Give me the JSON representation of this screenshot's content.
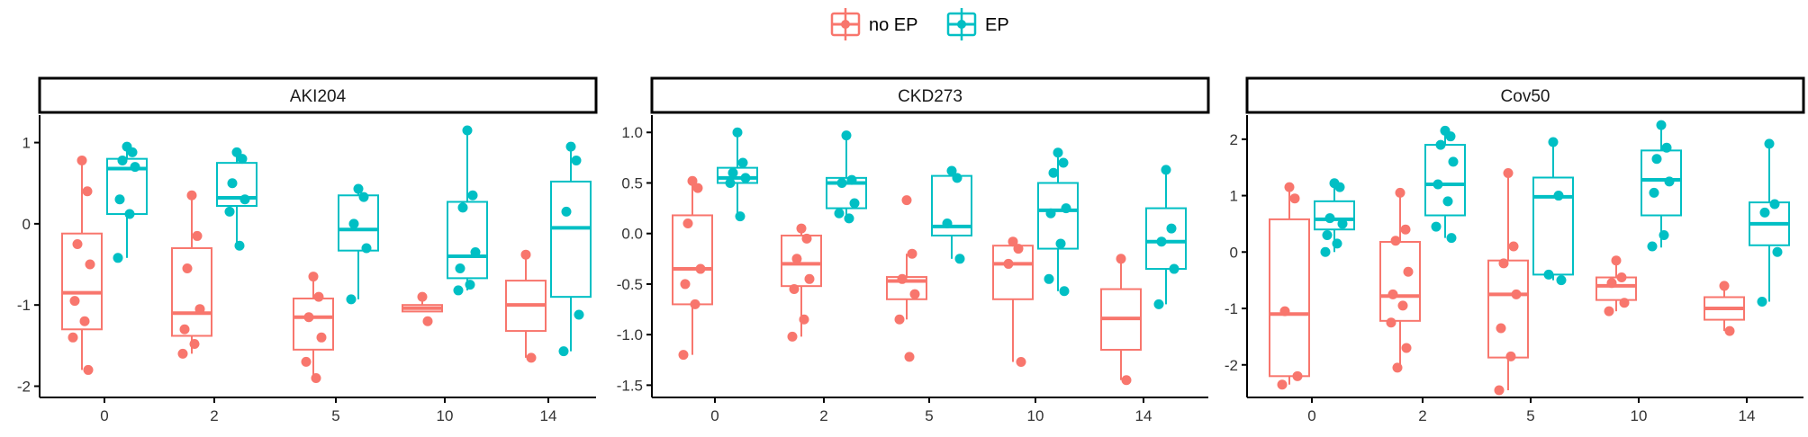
{
  "colors": {
    "no_ep": "#F8766D",
    "ep": "#00BFC4",
    "axis": "#000000",
    "strip_bg": "#ffffff"
  },
  "legend": {
    "position": "top-center",
    "entries": [
      {
        "key": "no_ep",
        "label": "no EP"
      },
      {
        "key": "ep",
        "label": "EP"
      }
    ]
  },
  "chart_data": [
    {
      "type": "boxplot",
      "title": "AKI204",
      "categories": [
        "0",
        "2",
        "5",
        "10",
        "14"
      ],
      "ylim": [
        -2.05,
        1.25
      ],
      "yticks": [
        -2,
        -1,
        0,
        1
      ],
      "tick_labels": [
        "-2",
        "-1",
        "0",
        "1"
      ],
      "groups": {
        "no_ep": [
          {
            "q1": -1.3,
            "median": -0.85,
            "q3": -0.12,
            "whisker_low": -1.8,
            "whisker_high": 0.78,
            "points": [
              0.78,
              0.4,
              -0.25,
              -0.5,
              -0.95,
              -1.2,
              -1.4,
              -1.8
            ]
          },
          {
            "q1": -1.38,
            "median": -1.1,
            "q3": -0.3,
            "whisker_low": -1.6,
            "whisker_high": 0.35,
            "points": [
              0.35,
              -0.15,
              -0.55,
              -1.05,
              -1.3,
              -1.48,
              -1.6
            ]
          },
          {
            "q1": -1.55,
            "median": -1.15,
            "q3": -0.92,
            "whisker_low": -1.9,
            "whisker_high": -0.65,
            "points": [
              -0.65,
              -0.9,
              -1.15,
              -1.4,
              -1.7,
              -1.9
            ]
          },
          {
            "q1": -1.08,
            "median": -1.04,
            "q3": -1.0,
            "whisker_low": -1.08,
            "whisker_high": -0.9,
            "points": [
              -0.9,
              -1.2
            ]
          },
          {
            "q1": -1.32,
            "median": -1.0,
            "q3": -0.7,
            "whisker_low": -1.65,
            "whisker_high": -0.38,
            "points": [
              -0.38,
              -1.65
            ]
          }
        ],
        "ep": [
          {
            "q1": 0.12,
            "median": 0.68,
            "q3": 0.8,
            "whisker_low": -0.42,
            "whisker_high": 0.95,
            "points": [
              0.95,
              0.88,
              0.78,
              0.7,
              0.3,
              0.12,
              -0.42
            ]
          },
          {
            "q1": 0.22,
            "median": 0.32,
            "q3": 0.75,
            "whisker_low": -0.27,
            "whisker_high": 0.88,
            "points": [
              0.88,
              0.8,
              0.5,
              0.3,
              0.15,
              -0.27
            ]
          },
          {
            "q1": -0.33,
            "median": -0.07,
            "q3": 0.35,
            "whisker_low": -0.93,
            "whisker_high": 0.43,
            "points": [
              0.43,
              0.33,
              0.0,
              -0.3,
              -0.93
            ]
          },
          {
            "q1": -0.67,
            "median": -0.4,
            "q3": 0.27,
            "whisker_low": -0.82,
            "whisker_high": 1.15,
            "points": [
              1.15,
              0.35,
              0.2,
              -0.35,
              -0.55,
              -0.75,
              -0.82
            ]
          },
          {
            "q1": -0.9,
            "median": -0.05,
            "q3": 0.52,
            "whisker_low": -1.57,
            "whisker_high": 0.95,
            "points": [
              0.95,
              0.78,
              0.15,
              -1.12,
              -1.57
            ]
          }
        ]
      }
    },
    {
      "type": "boxplot",
      "title": "CKD273",
      "categories": [
        "0",
        "2",
        "5",
        "10",
        "14"
      ],
      "ylim": [
        -1.55,
        1.1
      ],
      "yticks": [
        -1.5,
        -1.0,
        -0.5,
        0.0,
        0.5,
        1.0
      ],
      "tick_labels": [
        "-1.5",
        "-1.0",
        "-0.5",
        "0.0",
        "0.5",
        "1.0"
      ],
      "groups": {
        "no_ep": [
          {
            "q1": -0.7,
            "median": -0.35,
            "q3": 0.18,
            "whisker_low": -1.2,
            "whisker_high": 0.52,
            "points": [
              0.52,
              0.45,
              0.1,
              -0.35,
              -0.5,
              -0.7,
              -1.2
            ]
          },
          {
            "q1": -0.52,
            "median": -0.3,
            "q3": -0.02,
            "whisker_low": -1.02,
            "whisker_high": 0.05,
            "points": [
              0.05,
              -0.05,
              -0.25,
              -0.45,
              -0.55,
              -0.85,
              -1.02
            ]
          },
          {
            "q1": -0.65,
            "median": -0.47,
            "q3": -0.43,
            "whisker_low": -0.85,
            "whisker_high": -0.2,
            "points": [
              0.33,
              -0.2,
              -0.45,
              -0.6,
              -0.85,
              -1.22
            ]
          },
          {
            "q1": -0.65,
            "median": -0.3,
            "q3": -0.12,
            "whisker_low": -1.27,
            "whisker_high": -0.08,
            "points": [
              -0.08,
              -0.15,
              -0.3,
              -1.27
            ]
          },
          {
            "q1": -1.15,
            "median": -0.84,
            "q3": -0.55,
            "whisker_low": -1.45,
            "whisker_high": -0.25,
            "points": [
              -0.25,
              -1.45
            ]
          }
        ],
        "ep": [
          {
            "q1": 0.5,
            "median": 0.55,
            "q3": 0.65,
            "whisker_low": 0.17,
            "whisker_high": 1.0,
            "points": [
              1.0,
              0.7,
              0.6,
              0.55,
              0.5,
              0.17
            ]
          },
          {
            "q1": 0.25,
            "median": 0.5,
            "q3": 0.55,
            "whisker_low": 0.15,
            "whisker_high": 0.97,
            "points": [
              0.97,
              0.53,
              0.5,
              0.3,
              0.2,
              0.15
            ]
          },
          {
            "q1": -0.02,
            "median": 0.07,
            "q3": 0.57,
            "whisker_low": -0.25,
            "whisker_high": 0.62,
            "points": [
              0.62,
              0.55,
              0.1,
              -0.25
            ]
          },
          {
            "q1": -0.15,
            "median": 0.23,
            "q3": 0.5,
            "whisker_low": -0.57,
            "whisker_high": 0.8,
            "points": [
              0.8,
              0.7,
              0.6,
              0.25,
              0.2,
              -0.1,
              -0.45,
              -0.57
            ]
          },
          {
            "q1": -0.35,
            "median": -0.08,
            "q3": 0.25,
            "whisker_low": -0.7,
            "whisker_high": 0.63,
            "points": [
              0.63,
              0.05,
              -0.08,
              -0.35,
              -0.7
            ]
          }
        ]
      }
    },
    {
      "type": "boxplot",
      "title": "Cov50",
      "categories": [
        "0",
        "2",
        "5",
        "10",
        "14"
      ],
      "ylim": [
        -2.45,
        2.3
      ],
      "yticks": [
        -2,
        -1,
        0,
        1,
        2
      ],
      "tick_labels": [
        "-2",
        "-1",
        "0",
        "1",
        "2"
      ],
      "groups": {
        "no_ep": [
          {
            "q1": -2.2,
            "median": -1.1,
            "q3": 0.58,
            "whisker_low": -2.35,
            "whisker_high": 1.15,
            "points": [
              1.15,
              0.95,
              -1.05,
              -2.2,
              -2.35
            ]
          },
          {
            "q1": -1.22,
            "median": -0.78,
            "q3": 0.18,
            "whisker_low": -2.05,
            "whisker_high": 1.05,
            "points": [
              1.05,
              0.4,
              0.2,
              -0.35,
              -0.75,
              -0.95,
              -1.25,
              -1.7,
              -2.05
            ]
          },
          {
            "q1": -1.87,
            "median": -0.75,
            "q3": -0.15,
            "whisker_low": -2.45,
            "whisker_high": 1.4,
            "points": [
              1.4,
              0.1,
              -0.2,
              -0.75,
              -1.35,
              -1.85,
              -2.45
            ]
          },
          {
            "q1": -0.85,
            "median": -0.6,
            "q3": -0.45,
            "whisker_low": -1.05,
            "whisker_high": -0.15,
            "points": [
              -0.15,
              -0.45,
              -0.55,
              -0.9,
              -1.05
            ]
          },
          {
            "q1": -1.2,
            "median": -1.0,
            "q3": -0.8,
            "whisker_low": -1.4,
            "whisker_high": -0.6,
            "points": [
              -0.6,
              -1.4
            ]
          }
        ],
        "ep": [
          {
            "q1": 0.4,
            "median": 0.58,
            "q3": 0.9,
            "whisker_low": 0.0,
            "whisker_high": 1.22,
            "points": [
              1.22,
              1.15,
              0.6,
              0.5,
              0.3,
              0.15,
              0.0
            ]
          },
          {
            "q1": 0.65,
            "median": 1.2,
            "q3": 1.9,
            "whisker_low": 0.25,
            "whisker_high": 2.15,
            "points": [
              2.15,
              2.05,
              1.9,
              1.6,
              1.2,
              0.9,
              0.45,
              0.25
            ]
          },
          {
            "q1": -0.4,
            "median": 0.98,
            "q3": 1.32,
            "whisker_low": -0.5,
            "whisker_high": 1.95,
            "points": [
              1.95,
              1.0,
              -0.4,
              -0.5
            ]
          },
          {
            "q1": 0.65,
            "median": 1.28,
            "q3": 1.8,
            "whisker_low": 0.08,
            "whisker_high": 2.25,
            "points": [
              2.25,
              1.85,
              1.65,
              1.25,
              1.05,
              0.3,
              0.1
            ]
          },
          {
            "q1": 0.12,
            "median": 0.5,
            "q3": 0.88,
            "whisker_low": -0.88,
            "whisker_high": 1.92,
            "points": [
              1.92,
              0.85,
              0.7,
              0.0,
              -0.88
            ]
          }
        ]
      }
    }
  ]
}
